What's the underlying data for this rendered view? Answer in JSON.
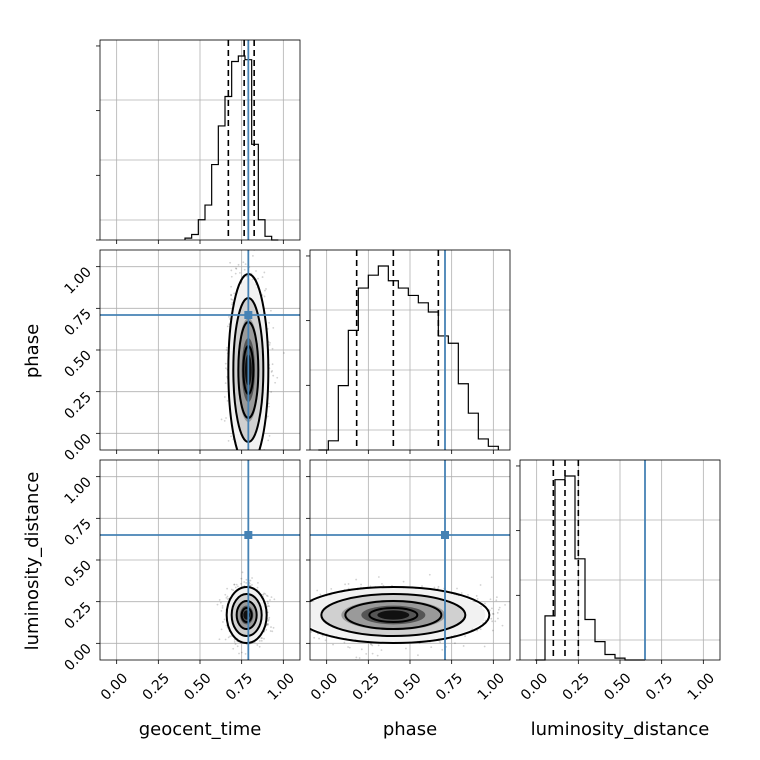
{
  "figure": {
    "type": "corner_plot",
    "parameters": [
      "geocent_time",
      "phase",
      "luminosity_distance"
    ],
    "axis_labels": {
      "bottom": [
        "geocent_time",
        "phase",
        "luminosity_distance"
      ],
      "left": [
        "phase",
        "luminosity_distance"
      ]
    },
    "tick_labels": [
      "0.00",
      "0.25",
      "0.50",
      "0.75",
      "1.00"
    ],
    "colors": {
      "truth": "#4682b4",
      "hist": "#000000",
      "grid": "#b0b0b0",
      "density_dark": "#000000",
      "density_light": "#e8e8e8"
    }
  },
  "chart_data": [
    {
      "type": "histogram",
      "panel": "geocent_time",
      "xlim": [
        -0.1,
        1.1
      ],
      "grid": true,
      "bins": [
        0.41,
        0.45,
        0.49,
        0.53,
        0.57,
        0.61,
        0.65,
        0.69,
        0.73,
        0.77,
        0.81,
        0.85,
        0.89,
        0.93,
        0.97
      ],
      "counts": [
        0.01,
        0.03,
        0.11,
        0.19,
        0.41,
        0.62,
        0.78,
        0.97,
        1.0,
        0.98,
        0.52,
        0.11,
        0.02,
        0.0
      ],
      "quantiles": [
        0.67,
        0.765,
        0.825
      ],
      "truth": 0.79
    },
    {
      "type": "histogram",
      "panel": "phase",
      "xlim": [
        -0.1,
        1.1
      ],
      "grid": true,
      "bins": [
        -0.05,
        0.01,
        0.07,
        0.13,
        0.19,
        0.25,
        0.31,
        0.37,
        0.43,
        0.49,
        0.55,
        0.61,
        0.67,
        0.73,
        0.79,
        0.85,
        0.91,
        0.97,
        1.03
      ],
      "counts": [
        0.0,
        0.05,
        0.35,
        0.65,
        0.88,
        0.95,
        1.0,
        0.92,
        0.88,
        0.84,
        0.8,
        0.75,
        0.62,
        0.58,
        0.36,
        0.2,
        0.06,
        0.02
      ],
      "quantiles": [
        0.18,
        0.4,
        0.67
      ],
      "truth": 0.71
    },
    {
      "type": "histogram",
      "panel": "luminosity_distance",
      "xlim": [
        -0.1,
        1.1
      ],
      "grid": true,
      "bins": [
        -0.01,
        0.05,
        0.11,
        0.17,
        0.23,
        0.29,
        0.35,
        0.41,
        0.47,
        0.53,
        0.59,
        0.65
      ],
      "counts": [
        0.0,
        0.24,
        0.98,
        1.0,
        0.55,
        0.22,
        0.1,
        0.03,
        0.01,
        0.0,
        0.0
      ],
      "quantiles": [
        0.1,
        0.17,
        0.25
      ],
      "truth": 0.65
    },
    {
      "type": "scatter_density",
      "panel": "phase vs geocent_time",
      "x_param": "geocent_time",
      "y_param": "phase",
      "xlim": [
        -0.1,
        1.1
      ],
      "ylim": [
        -0.1,
        1.1
      ],
      "grid": true,
      "center": [
        0.79,
        0.38
      ],
      "spread": [
        0.05,
        0.24
      ],
      "truth": [
        0.79,
        0.71
      ]
    },
    {
      "type": "scatter_density",
      "panel": "luminosity_distance vs geocent_time",
      "x_param": "geocent_time",
      "y_param": "luminosity_distance",
      "xlim": [
        -0.1,
        1.1
      ],
      "ylim": [
        -0.1,
        1.1
      ],
      "grid": true,
      "center": [
        0.78,
        0.17
      ],
      "spread": [
        0.05,
        0.07
      ],
      "truth": [
        0.79,
        0.65
      ]
    },
    {
      "type": "scatter_density",
      "panel": "luminosity_distance vs phase",
      "x_param": "phase",
      "y_param": "luminosity_distance",
      "xlim": [
        -0.1,
        1.1
      ],
      "ylim": [
        -0.1,
        1.1
      ],
      "grid": true,
      "center": [
        0.4,
        0.17
      ],
      "spread": [
        0.24,
        0.07
      ],
      "truth": [
        0.71,
        0.65
      ]
    }
  ]
}
